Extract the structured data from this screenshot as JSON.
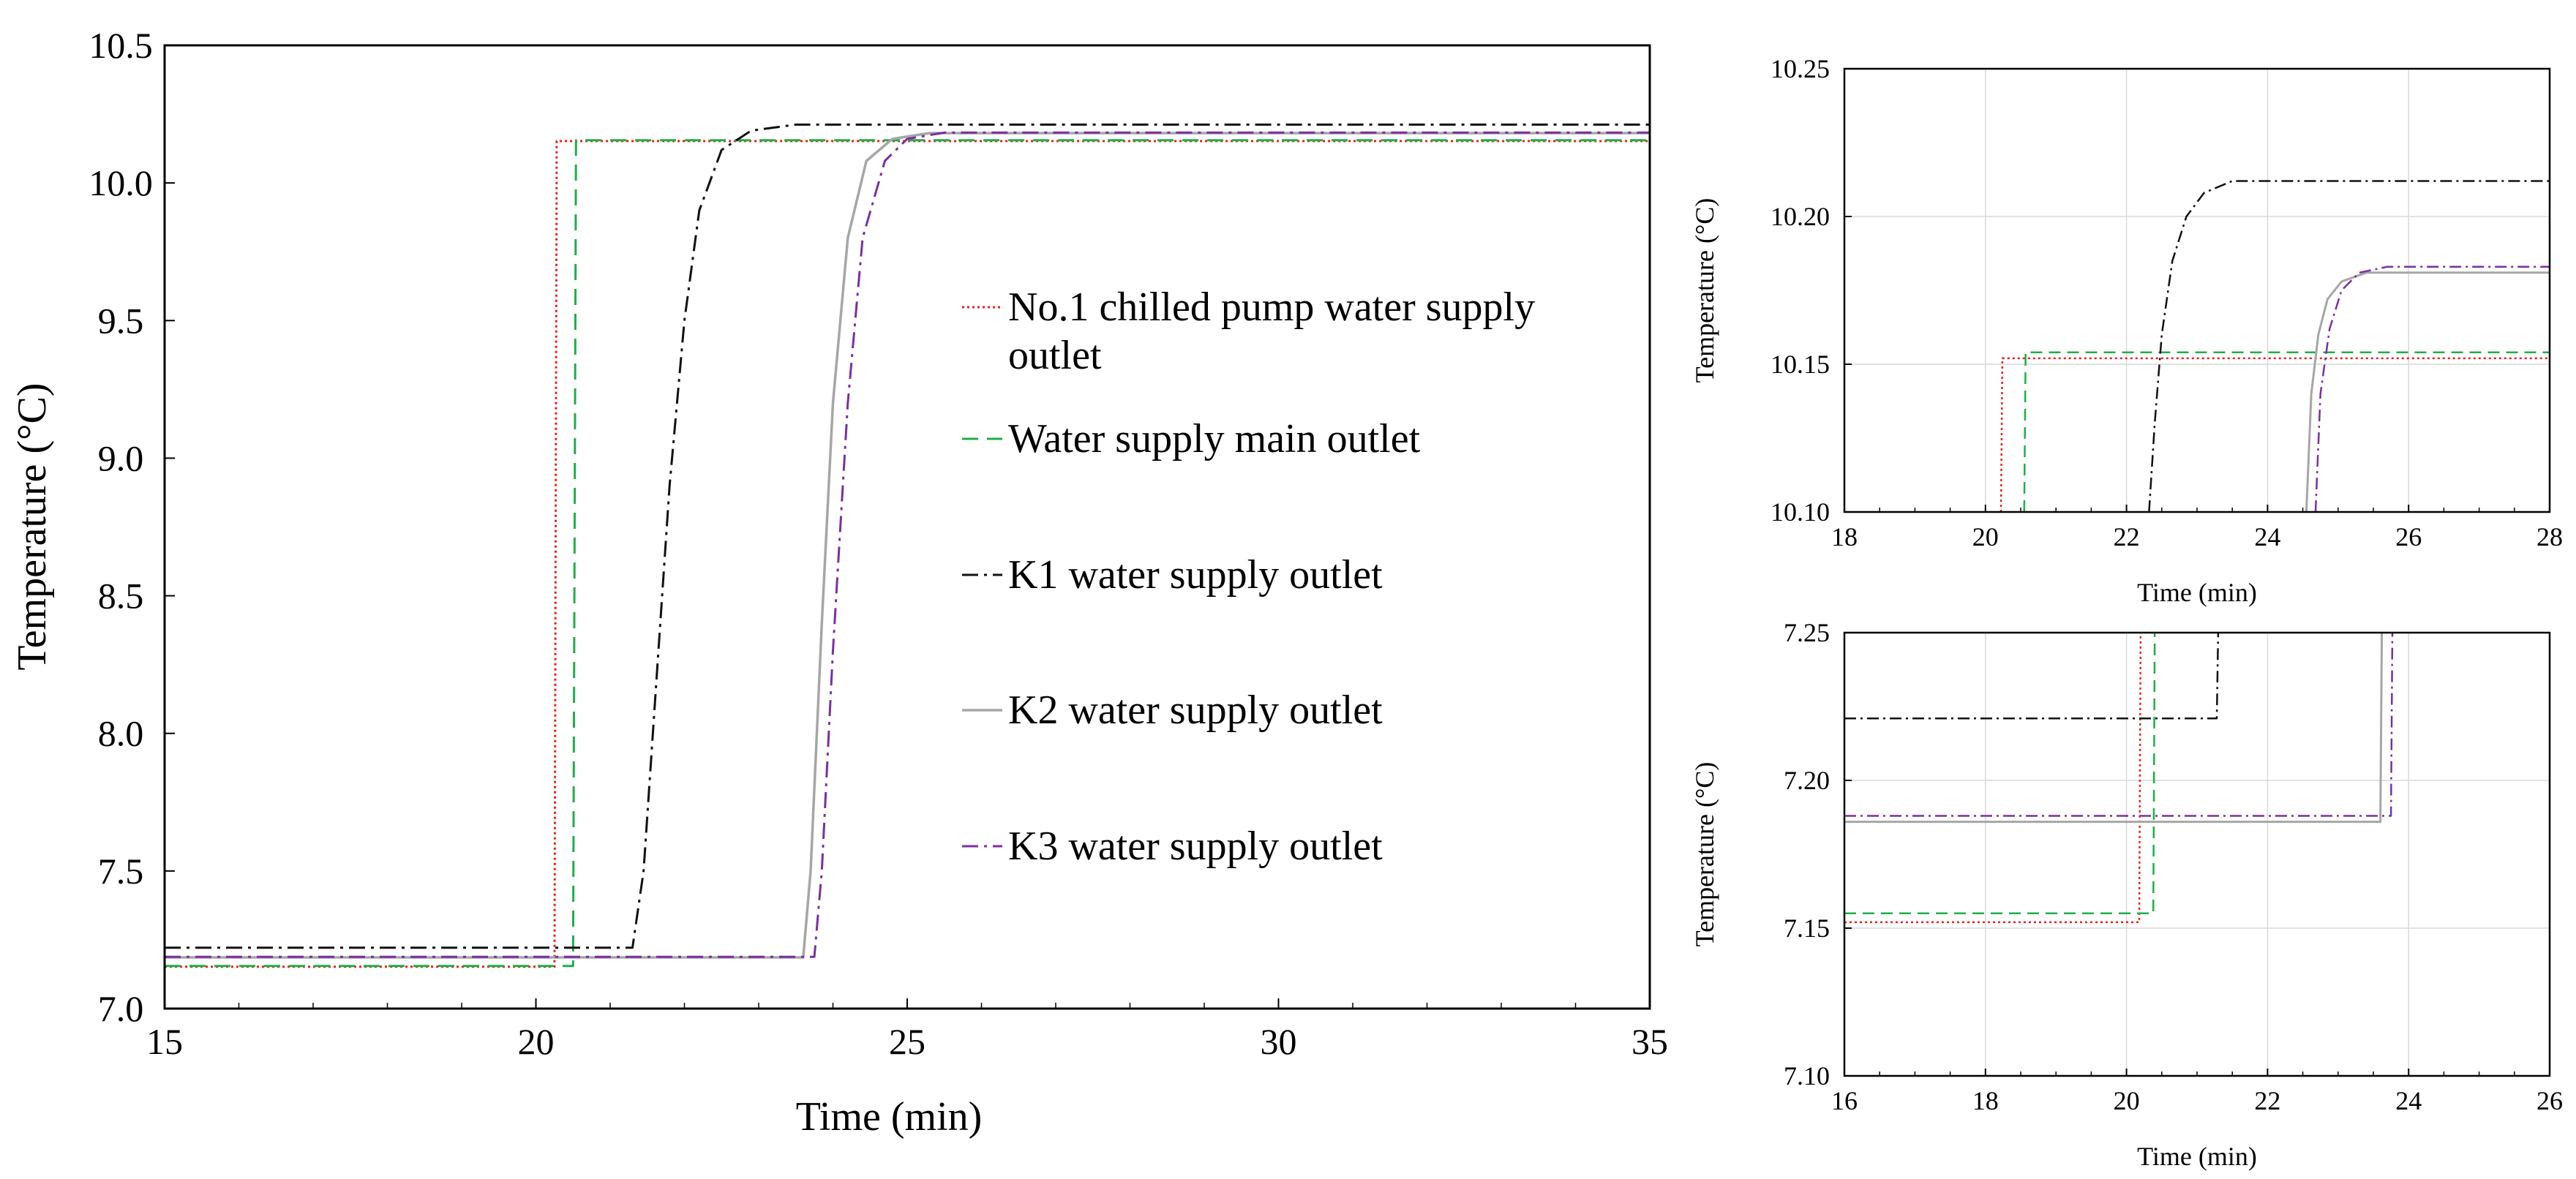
{
  "chart_data": [
    {
      "type": "line",
      "id": "main",
      "xlabel": "Time (min)",
      "ylabel": "Temperature (°C)",
      "xlim": [
        15,
        35
      ],
      "ylim": [
        7.0,
        10.5
      ],
      "xticks": [
        15,
        20,
        25,
        30,
        35
      ],
      "xtick_labels": [
        "15",
        "20",
        "25",
        "30",
        "35"
      ],
      "yticks": [
        7.0,
        7.5,
        8.0,
        8.5,
        9.0,
        9.5,
        10.0,
        10.5
      ],
      "ytick_labels": [
        "7.0",
        "7.5",
        "8.0",
        "8.5",
        "9.0",
        "9.5",
        "10.0",
        "10.5"
      ],
      "grid": false,
      "legend": {
        "position": "center-right",
        "entries": [
          {
            "label_lines": [
              "No.1 chilled pump water supply",
              "outlet"
            ],
            "series": "no1"
          },
          {
            "label_lines": [
              "Water supply main outlet"
            ],
            "series": "main"
          },
          {
            "label_lines": [
              "K1 water supply outlet"
            ],
            "series": "k1"
          },
          {
            "label_lines": [
              "K2 water supply outlet"
            ],
            "series": "k2"
          },
          {
            "label_lines": [
              "K3 water supply outlet"
            ],
            "series": "k3"
          }
        ]
      },
      "series": [
        {
          "key": "no1",
          "name": "No.1 chilled pump water supply outlet",
          "color": "#e8211d",
          "dash": "3,4",
          "width": 3,
          "points": [
            [
              15,
              7.152
            ],
            [
              20.25,
              7.152
            ],
            [
              20.28,
              10.152
            ],
            [
              35,
              10.152
            ]
          ]
        },
        {
          "key": "main",
          "name": "Water supply main outlet",
          "color": "#1fae4a",
          "dash": "22,12",
          "width": 3,
          "points": [
            [
              15,
              7.155
            ],
            [
              20.5,
              7.155
            ],
            [
              20.54,
              10.155
            ],
            [
              35,
              10.155
            ]
          ]
        },
        {
          "key": "k1",
          "name": "K1 water supply outlet",
          "color": "#111111",
          "dash": "22,8,4,8",
          "width": 3,
          "points": [
            [
              15,
              7.221
            ],
            [
              21.3,
              7.221
            ],
            [
              21.45,
              7.5
            ],
            [
              21.6,
              8.1
            ],
            [
              21.8,
              8.9
            ],
            [
              22.0,
              9.5
            ],
            [
              22.2,
              9.9
            ],
            [
              22.5,
              10.12
            ],
            [
              22.9,
              10.19
            ],
            [
              23.5,
              10.212
            ],
            [
              35,
              10.212
            ]
          ]
        },
        {
          "key": "k2",
          "name": "K2 water supply outlet",
          "color": "#a6a6a6",
          "dash": "",
          "width": 3.5,
          "points": [
            [
              15,
              7.186
            ],
            [
              23.6,
              7.186
            ],
            [
              23.7,
              7.5
            ],
            [
              23.85,
              8.4
            ],
            [
              24.0,
              9.2
            ],
            [
              24.2,
              9.8
            ],
            [
              24.45,
              10.08
            ],
            [
              24.8,
              10.16
            ],
            [
              25.3,
              10.181
            ],
            [
              35,
              10.181
            ]
          ]
        },
        {
          "key": "k3",
          "name": "K3 water supply outlet",
          "color": "#7b2fa0",
          "dash": "22,8,4,8",
          "width": 3,
          "points": [
            [
              15,
              7.188
            ],
            [
              23.75,
              7.188
            ],
            [
              23.85,
              7.5
            ],
            [
              24.0,
              8.3
            ],
            [
              24.2,
              9.2
            ],
            [
              24.4,
              9.8
            ],
            [
              24.7,
              10.08
            ],
            [
              25.0,
              10.16
            ],
            [
              25.5,
              10.183
            ],
            [
              35,
              10.183
            ]
          ]
        }
      ]
    },
    {
      "type": "line",
      "id": "zoom-top",
      "xlabel": "Time (min)",
      "ylabel": "Temperature (°C)",
      "xlim": [
        18,
        28
      ],
      "ylim": [
        10.1,
        10.25
      ],
      "xticks": [
        18,
        20,
        22,
        24,
        26,
        28
      ],
      "xtick_labels": [
        "18",
        "20",
        "22",
        "24",
        "26",
        "28"
      ],
      "yticks": [
        10.1,
        10.15,
        10.2,
        10.25
      ],
      "ytick_labels": [
        "10.10",
        "10.15",
        "10.20",
        "10.25"
      ],
      "grid": true,
      "series": [
        {
          "key": "no1",
          "name": "No.1 chilled pump water supply outlet",
          "color": "#e8211d",
          "dash": "3,4",
          "width": 2.5,
          "points": [
            [
              20.22,
              10.1
            ],
            [
              20.24,
              10.152
            ],
            [
              28,
              10.152
            ]
          ]
        },
        {
          "key": "main",
          "name": "Water supply main outlet",
          "color": "#1fae4a",
          "dash": "16,9",
          "width": 2.5,
          "points": [
            [
              20.55,
              10.1
            ],
            [
              20.57,
              10.154
            ],
            [
              28,
              10.154
            ]
          ]
        },
        {
          "key": "k1",
          "name": "K1 water supply outlet",
          "color": "#111111",
          "dash": "16,6,3,6",
          "width": 2.5,
          "points": [
            [
              22.32,
              10.1
            ],
            [
              22.4,
              10.13
            ],
            [
              22.5,
              10.16
            ],
            [
              22.65,
              10.185
            ],
            [
              22.85,
              10.2
            ],
            [
              23.1,
              10.208
            ],
            [
              23.5,
              10.212
            ],
            [
              28,
              10.212
            ]
          ]
        },
        {
          "key": "k2",
          "name": "K2 water supply outlet",
          "color": "#a6a6a6",
          "dash": "",
          "width": 3,
          "points": [
            [
              24.55,
              10.1
            ],
            [
              24.62,
              10.14
            ],
            [
              24.72,
              10.16
            ],
            [
              24.85,
              10.172
            ],
            [
              25.05,
              10.178
            ],
            [
              25.4,
              10.181
            ],
            [
              28,
              10.181
            ]
          ]
        },
        {
          "key": "k3",
          "name": "K3 water supply outlet",
          "color": "#7b2fa0",
          "dash": "16,6,3,6",
          "width": 2.5,
          "points": [
            [
              24.68,
              10.1
            ],
            [
              24.75,
              10.14
            ],
            [
              24.88,
              10.162
            ],
            [
              25.05,
              10.175
            ],
            [
              25.3,
              10.181
            ],
            [
              25.7,
              10.183
            ],
            [
              28,
              10.183
            ]
          ]
        }
      ]
    },
    {
      "type": "line",
      "id": "zoom-bottom",
      "xlabel": "Time (min)",
      "ylabel": "Temperature (°C)",
      "xlim": [
        16,
        26
      ],
      "ylim": [
        7.1,
        7.25
      ],
      "xticks": [
        16,
        18,
        20,
        22,
        24,
        26
      ],
      "xtick_labels": [
        "16",
        "18",
        "20",
        "22",
        "24",
        "26"
      ],
      "yticks": [
        7.1,
        7.15,
        7.2,
        7.25
      ],
      "ytick_labels": [
        "7.10",
        "7.15",
        "7.20",
        "7.25"
      ],
      "grid": true,
      "series": [
        {
          "key": "no1",
          "name": "No.1 chilled pump water supply outlet",
          "color": "#e8211d",
          "dash": "3,4",
          "width": 2.5,
          "points": [
            [
              16,
              7.152
            ],
            [
              20.18,
              7.152
            ],
            [
              20.2,
              7.25
            ]
          ]
        },
        {
          "key": "main",
          "name": "Water supply main outlet",
          "color": "#1fae4a",
          "dash": "16,9",
          "width": 2.5,
          "points": [
            [
              16,
              7.155
            ],
            [
              20.38,
              7.155
            ],
            [
              20.4,
              7.25
            ]
          ]
        },
        {
          "key": "k1",
          "name": "K1 water supply outlet",
          "color": "#111111",
          "dash": "16,6,3,6",
          "width": 2.5,
          "points": [
            [
              16,
              7.221
            ],
            [
              21.28,
              7.221
            ],
            [
              21.3,
              7.25
            ]
          ]
        },
        {
          "key": "k2",
          "name": "K2 water supply outlet",
          "color": "#a6a6a6",
          "dash": "",
          "width": 3,
          "points": [
            [
              16,
              7.186
            ],
            [
              23.6,
              7.186
            ],
            [
              23.62,
              7.25
            ]
          ]
        },
        {
          "key": "k3",
          "name": "K3 water supply outlet",
          "color": "#7b2fa0",
          "dash": "16,6,3,6",
          "width": 2.5,
          "points": [
            [
              16,
              7.188
            ],
            [
              23.75,
              7.188
            ],
            [
              23.77,
              7.25
            ]
          ]
        }
      ]
    }
  ]
}
